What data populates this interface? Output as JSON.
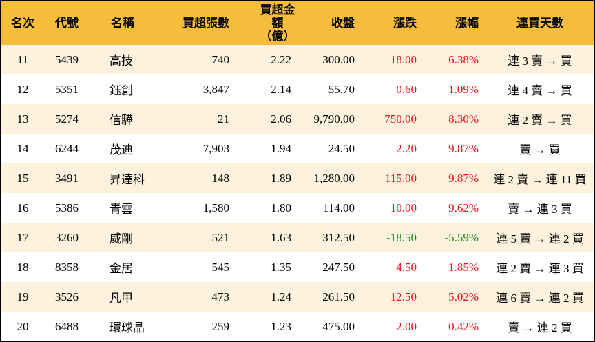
{
  "headers": {
    "rank": "名次",
    "code": "代號",
    "name": "名稱",
    "buy_shares": "買超張數",
    "buy_amount_line1": "買超金額",
    "buy_amount_line2": "（億）",
    "close": "收盤",
    "change": "漲跌",
    "change_pct": "漲幅",
    "days": "連買天數"
  },
  "colors": {
    "header_bg": "#f5bd3b",
    "stripe_bg": "#fdf2de",
    "up": "#e8141c",
    "down": "#1e8b1e"
  },
  "rows": [
    {
      "rank": "11",
      "code": "5439",
      "name": "高技",
      "shares": "740",
      "amount": "2.22",
      "close": "300.00",
      "change": "18.00",
      "pct": "6.38%",
      "days": "連 3 賣 → 買",
      "dir": "up"
    },
    {
      "rank": "12",
      "code": "5351",
      "name": "鈺創",
      "shares": "3,847",
      "amount": "2.14",
      "close": "55.70",
      "change": "0.60",
      "pct": "1.09%",
      "days": "連 4 賣 → 買",
      "dir": "up"
    },
    {
      "rank": "13",
      "code": "5274",
      "name": "信驊",
      "shares": "21",
      "amount": "2.06",
      "close": "9,790.00",
      "change": "750.00",
      "pct": "8.30%",
      "days": "連 2 賣 → 買",
      "dir": "up"
    },
    {
      "rank": "14",
      "code": "6244",
      "name": "茂迪",
      "shares": "7,903",
      "amount": "1.94",
      "close": "24.50",
      "change": "2.20",
      "pct": "9.87%",
      "days": "賣 → 買",
      "dir": "up"
    },
    {
      "rank": "15",
      "code": "3491",
      "name": "昇達科",
      "shares": "148",
      "amount": "1.89",
      "close": "1,280.00",
      "change": "115.00",
      "pct": "9.87%",
      "days": "連 2 賣 → 連 11 買",
      "dir": "up"
    },
    {
      "rank": "16",
      "code": "5386",
      "name": "青雲",
      "shares": "1,580",
      "amount": "1.80",
      "close": "114.00",
      "change": "10.00",
      "pct": "9.62%",
      "days": "賣 → 連 3 買",
      "dir": "up"
    },
    {
      "rank": "17",
      "code": "3260",
      "name": "威剛",
      "shares": "521",
      "amount": "1.63",
      "close": "312.50",
      "change": "-18.50",
      "pct": "-5.59%",
      "days": "連 5 賣 → 連 2 買",
      "dir": "down"
    },
    {
      "rank": "18",
      "code": "8358",
      "name": "金居",
      "shares": "545",
      "amount": "1.35",
      "close": "247.50",
      "change": "4.50",
      "pct": "1.85%",
      "days": "連 2 賣 → 連 3 買",
      "dir": "up"
    },
    {
      "rank": "19",
      "code": "3526",
      "name": "凡甲",
      "shares": "473",
      "amount": "1.24",
      "close": "261.50",
      "change": "12.50",
      "pct": "5.02%",
      "days": "連 6 賣 → 連 2 買",
      "dir": "up"
    },
    {
      "rank": "20",
      "code": "6488",
      "name": "環球晶",
      "shares": "259",
      "amount": "1.23",
      "close": "475.00",
      "change": "2.00",
      "pct": "0.42%",
      "days": "賣 → 連 2 買",
      "dir": "up"
    }
  ]
}
